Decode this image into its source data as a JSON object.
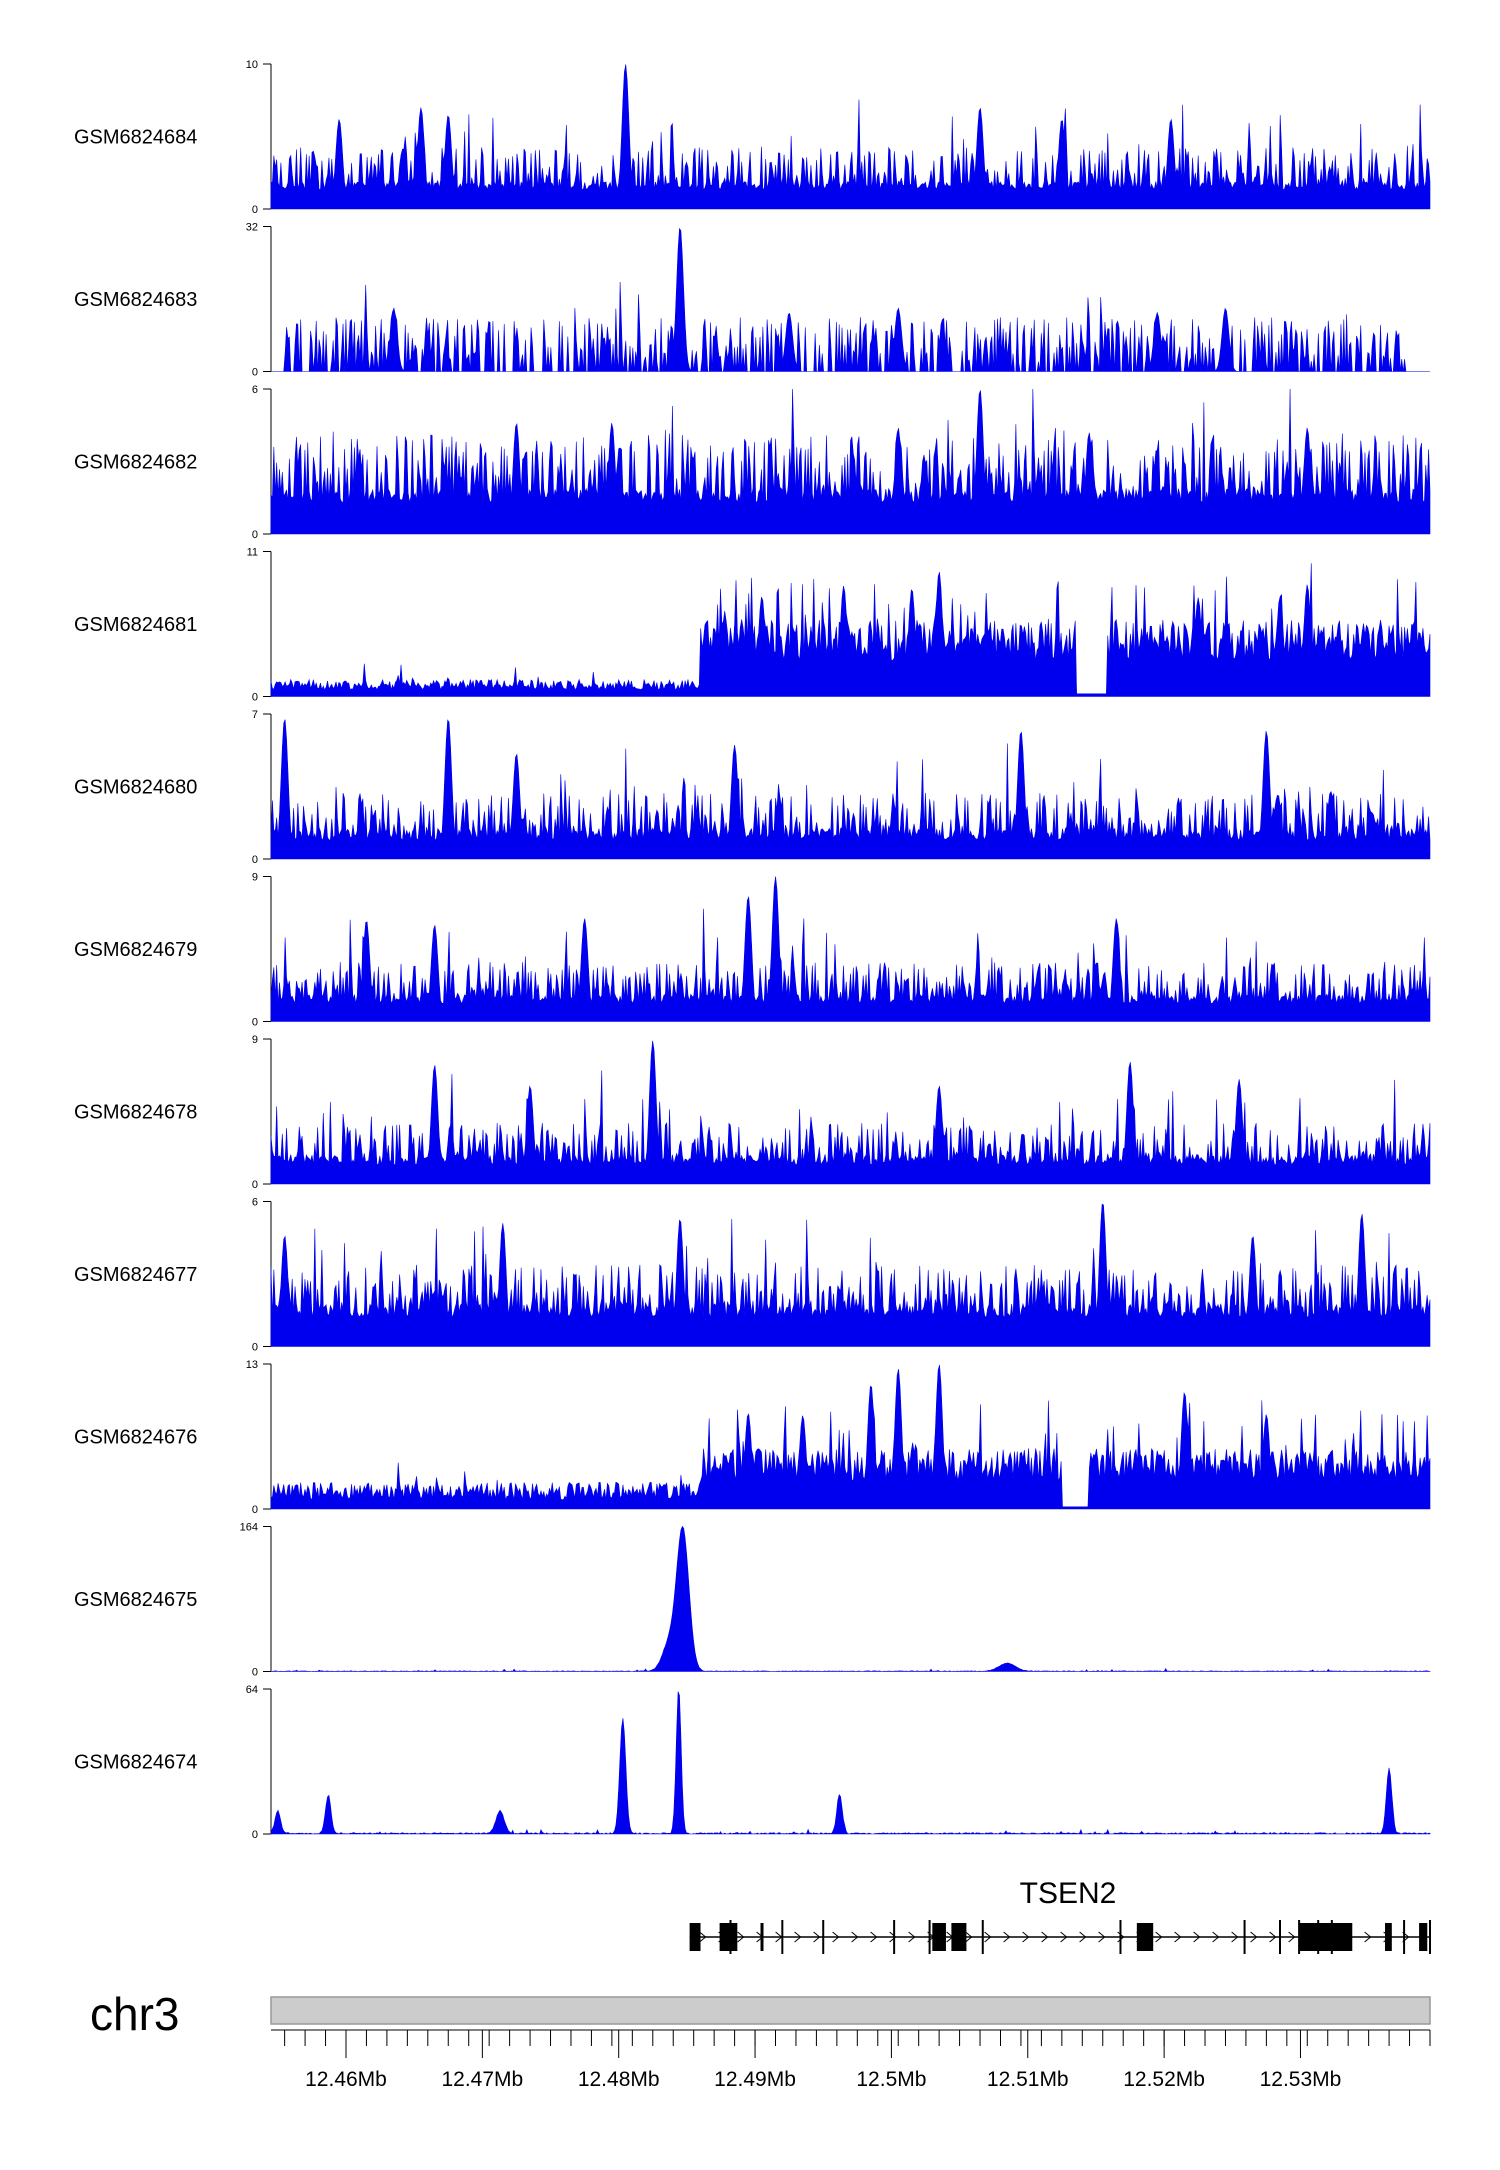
{
  "chart_data": {
    "type": "area",
    "chromosome": "chr3",
    "x_range_mb": [
      12.4545,
      12.5395
    ],
    "color": "#0000ee",
    "tracks": [
      {
        "name": "GSM6824684",
        "ylim": [
          0,
          10
        ],
        "baseline": 1.3,
        "noise": 3.0,
        "pattern": "uniform",
        "peaks": [
          [
            12.4805,
            10
          ],
          [
            12.4655,
            7
          ],
          [
            12.4595,
            6.2
          ],
          [
            12.5065,
            7
          ],
          [
            12.4675,
            6.5
          ],
          [
            12.5125,
            6.2
          ],
          [
            12.5205,
            6.2
          ]
        ]
      },
      {
        "name": "GSM6824683",
        "ylim": [
          0,
          32
        ],
        "baseline": 0,
        "noise": 10,
        "pattern": "sparse",
        "peaks": [
          [
            12.4845,
            32
          ],
          [
            12.4635,
            14
          ],
          [
            12.5005,
            14
          ],
          [
            12.5245,
            14
          ],
          [
            12.5195,
            13
          ],
          [
            12.4925,
            13
          ]
        ]
      },
      {
        "name": "GSM6824682",
        "ylim": [
          0,
          6
        ],
        "baseline": 1.3,
        "noise": 2.8,
        "pattern": "uniform",
        "peaks": [
          [
            12.5065,
            6
          ],
          [
            12.4725,
            4.6
          ],
          [
            12.4795,
            4.6
          ],
          [
            12.5005,
            4.4
          ],
          [
            12.5145,
            4.2
          ],
          [
            12.5305,
            4.4
          ]
        ]
      },
      {
        "name": "GSM6824681",
        "ylim": [
          0,
          11
        ],
        "baseline": 0.5,
        "noise": 0.8,
        "pattern": "region",
        "region_start": 12.486,
        "region_end": 12.5395,
        "region_level": 4.5,
        "gap": [
          12.5135,
          12.5158
        ],
        "peaks": [
          [
            12.5035,
            9.5
          ],
          [
            12.4905,
            7.6
          ],
          [
            12.5015,
            8.2
          ],
          [
            12.4965,
            8.4
          ],
          [
            12.5305,
            8.5
          ],
          [
            12.5225,
            7.5
          ],
          [
            12.5285,
            7.6
          ]
        ]
      },
      {
        "name": "GSM6824680",
        "ylim": [
          0,
          7
        ],
        "baseline": 0.9,
        "noise": 2.3,
        "pattern": "uniform",
        "peaks": [
          [
            12.4555,
            6.8
          ],
          [
            12.4675,
            6.8
          ],
          [
            12.5095,
            6.2
          ],
          [
            12.5275,
            6.2
          ],
          [
            12.4885,
            5.5
          ],
          [
            12.4725,
            5.1
          ]
        ]
      },
      {
        "name": "GSM6824679",
        "ylim": [
          0,
          9
        ],
        "baseline": 1.1,
        "noise": 2.6,
        "pattern": "uniform",
        "peaks": [
          [
            12.4915,
            9
          ],
          [
            12.4895,
            7.8
          ],
          [
            12.4615,
            6.3
          ],
          [
            12.4665,
            6
          ],
          [
            12.5165,
            6.4
          ],
          [
            12.4775,
            6.4
          ]
        ]
      },
      {
        "name": "GSM6824678",
        "ylim": [
          0,
          9
        ],
        "baseline": 1.2,
        "noise": 2.6,
        "pattern": "uniform",
        "peaks": [
          [
            12.4825,
            8.9
          ],
          [
            12.5175,
            7.6
          ],
          [
            12.4665,
            7.4
          ],
          [
            12.5255,
            6.5
          ],
          [
            12.4735,
            6.1
          ],
          [
            12.5035,
            6.1
          ]
        ]
      },
      {
        "name": "GSM6824677",
        "ylim": [
          0,
          6
        ],
        "baseline": 1.2,
        "noise": 2.2,
        "pattern": "uniform",
        "peaks": [
          [
            12.5155,
            6
          ],
          [
            12.5345,
            5.5
          ],
          [
            12.4845,
            5.3
          ],
          [
            12.4555,
            4.6
          ],
          [
            12.4715,
            5.1
          ],
          [
            12.5265,
            4.6
          ]
        ]
      },
      {
        "name": "GSM6824676",
        "ylim": [
          0,
          13
        ],
        "baseline": 0.8,
        "noise": 1.6,
        "pattern": "region",
        "region_start": 12.486,
        "region_end": 12.5395,
        "region_level": 4.2,
        "gap": [
          12.5125,
          12.5145
        ],
        "peaks": [
          [
            12.5035,
            13
          ],
          [
            12.5005,
            12.6
          ],
          [
            12.4985,
            11.2
          ],
          [
            12.4935,
            8.4
          ],
          [
            12.5215,
            10.5
          ],
          [
            12.4895,
            8.6
          ],
          [
            12.5275,
            8.5
          ]
        ]
      },
      {
        "name": "GSM6824675",
        "ylim": [
          0,
          164
        ],
        "baseline": 0.8,
        "noise": 2.5,
        "pattern": "peaks",
        "peaks": [
          [
            12.4847,
            160,
            0.00045
          ],
          [
            12.4837,
            30,
            0.0005
          ],
          [
            12.5085,
            9,
            0.0006
          ]
        ]
      },
      {
        "name": "GSM6824674",
        "ylim": [
          0,
          64
        ],
        "baseline": 0.6,
        "noise": 1.8,
        "pattern": "peaks",
        "peaks": [
          [
            12.4844,
            64,
            0.00018
          ],
          [
            12.4803,
            51,
            0.00022
          ],
          [
            12.5365,
            29,
            0.0002
          ],
          [
            12.4587,
            17,
            0.0002
          ],
          [
            12.4962,
            17,
            0.0002
          ],
          [
            12.4713,
            10,
            0.0003
          ],
          [
            12.455,
            10,
            0.0002
          ]
        ]
      }
    ],
    "gene": {
      "name": "TSEN2",
      "strand": "+",
      "start": 12.4852,
      "end": 12.5395,
      "exons": [
        [
          12.4852,
          12.486
        ],
        [
          12.4874,
          12.4887
        ],
        [
          12.4904,
          12.4906
        ],
        [
          12.503,
          12.504
        ],
        [
          12.5044,
          12.5055
        ],
        [
          12.518,
          12.5192
        ],
        [
          12.5299,
          12.5338
        ],
        [
          12.5362,
          12.5367
        ],
        [
          12.5387,
          12.5393
        ]
      ],
      "thin_marks": [
        12.4882,
        12.492,
        12.495,
        12.5002,
        12.5028,
        12.5067,
        12.5168,
        12.5259,
        12.5285,
        12.5299,
        12.5313,
        12.5323,
        12.5376,
        12.5395
      ]
    },
    "x_axis": {
      "ticks": [
        12.46,
        12.47,
        12.48,
        12.49,
        12.5,
        12.51,
        12.52,
        12.53
      ],
      "tick_labels": [
        "12.46Mb",
        "12.47Mb",
        "12.48Mb",
        "12.49Mb",
        "12.5Mb",
        "12.51Mb",
        "12.52Mb",
        "12.53Mb"
      ],
      "minor_step": 0.0015
    }
  }
}
